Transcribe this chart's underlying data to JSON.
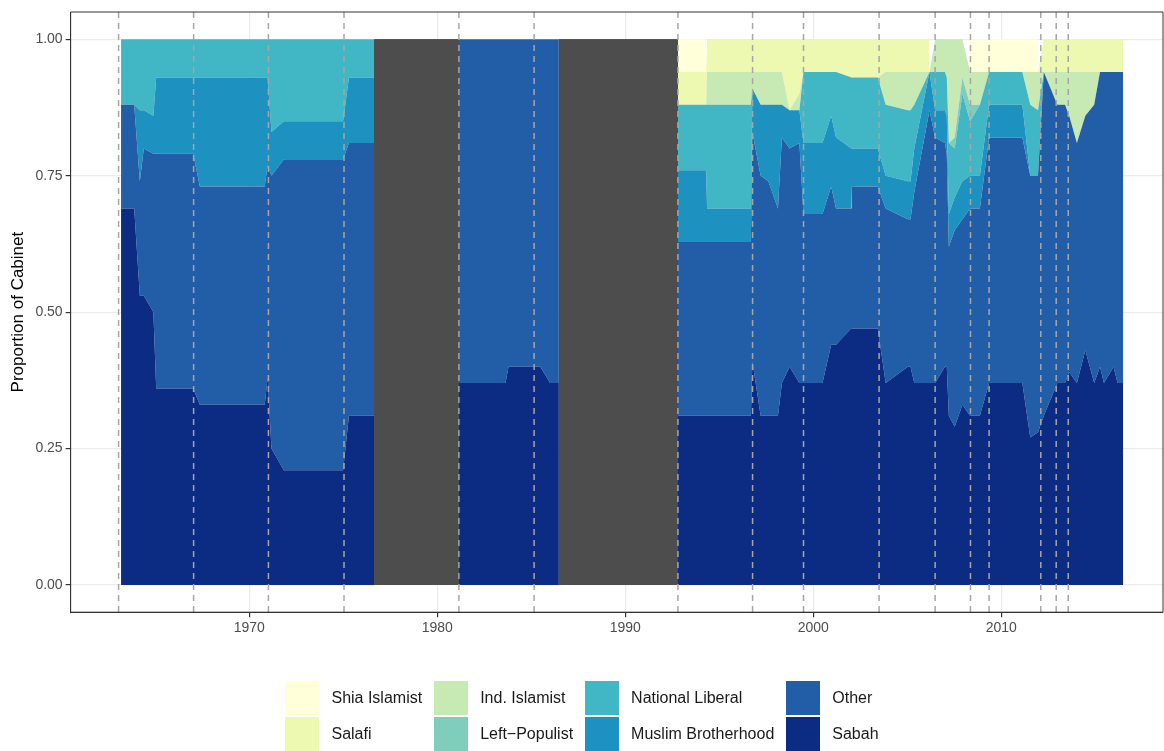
{
  "chart_data": {
    "type": "area",
    "stacked": true,
    "ylabel": "Proportion of Cabinet",
    "x": [
      1963.18,
      1963.88,
      1964.18,
      1964.39,
      1964.9,
      1965.05,
      1967.02,
      1967.37,
      1970.82,
      1970.98,
      1971.18,
      1971.84,
      1974.99,
      1975.3,
      1976.64,
      1979,
      1981.15,
      1983.63,
      1983.79,
      1985.48,
      1986.0,
      1986.47,
      1989.5,
      1992.8,
      1994.3,
      1994.35,
      1996.68,
      1996.76,
      1997.2,
      1997.61,
      1998.12,
      1998.33,
      1998.74,
      1999.26,
      1999.48,
      2000.49,
      2000.95,
      2001.21,
      2002.03,
      2002.05,
      2003.43,
      2003.85,
      2005.03,
      2005.17,
      2005.37,
      2006.18,
      2006.48,
      2007.0,
      2007.1,
      2007.21,
      2007.52,
      2007.93,
      2008.34,
      2008.86,
      2009.35,
      2011.12,
      2011.54,
      2011.95,
      2012.26,
      2012.98,
      2013.39,
      2013.61,
      2014.02,
      2014.47,
      2014.94,
      2015.25,
      2015.46,
      2015.97,
      2016.18,
      2016.48
    ],
    "series": [
      {
        "name": "Sabah",
        "color": "#0c2c84",
        "values": [
          0.69,
          0.69,
          0.53,
          0.53,
          0.5,
          0.36,
          0.36,
          0.33,
          0.33,
          0.38,
          0.25,
          0.21,
          0.21,
          0.31,
          0.31,
          null,
          0.37,
          0.37,
          0.4,
          0.4,
          0.37,
          0.37,
          null,
          0.31,
          0.31,
          0.31,
          0.31,
          0.41,
          0.31,
          0.31,
          0.31,
          0.37,
          0.4,
          0.37,
          0.37,
          0.37,
          0.44,
          0.44,
          0.47,
          0.47,
          0.47,
          0.37,
          0.4,
          0.4,
          0.37,
          0.37,
          0.37,
          0.4,
          0.4,
          0.31,
          0.29,
          0.33,
          0.31,
          0.31,
          0.37,
          0.37,
          0.27,
          0.28,
          0.31,
          0.37,
          0.37,
          0.39,
          0.37,
          0.43,
          0.37,
          0.4,
          0.37,
          0.4,
          0.37,
          0.37
        ]
      },
      {
        "name": "Other",
        "color": "#225ea8",
        "values": [
          0.19,
          0.19,
          0.21,
          0.27,
          0.29,
          0.43,
          0.43,
          0.4,
          0.4,
          0.39,
          0.5,
          0.57,
          0.57,
          0.5,
          0.5,
          null,
          0.63,
          0.63,
          0.6,
          0.6,
          0.63,
          0.63,
          null,
          0.32,
          0.32,
          0.32,
          0.32,
          0.42,
          0.44,
          0.43,
          0.38,
          0.45,
          0.4,
          0.44,
          0.31,
          0.31,
          0.29,
          0.25,
          0.22,
          0.26,
          0.26,
          0.32,
          0.27,
          0.27,
          0.35,
          0.5,
          0.45,
          0.41,
          0.39,
          0.31,
          0.36,
          0.34,
          0.38,
          0.38,
          0.45,
          0.45,
          0.48,
          0.47,
          0.63,
          0.51,
          0.51,
          0.47,
          0.44,
          0.43,
          0.51,
          0.54,
          0.57,
          0.54,
          0.57,
          0.57
        ]
      },
      {
        "name": "Muslim Brotherhood",
        "color": "#1d91c0",
        "values": [
          0,
          0,
          0.13,
          0.07,
          0.07,
          0.14,
          0.14,
          0.2,
          0.2,
          0.16,
          0.08,
          0.07,
          0.07,
          0.12,
          0.12,
          null,
          null,
          null,
          null,
          null,
          null,
          null,
          null,
          0.13,
          0.13,
          0.06,
          0.06,
          0.08,
          0.13,
          0.14,
          0.19,
          0.06,
          0.07,
          0.06,
          0.13,
          0.13,
          0.13,
          0.13,
          0.11,
          0.07,
          0.07,
          0.06,
          0.07,
          0.07,
          0.08,
          0.07,
          0.05,
          0.06,
          0.07,
          0.06,
          0.06,
          0.07,
          0.06,
          0.06,
          0.06,
          0.06,
          0,
          0,
          0,
          0,
          0,
          0,
          0,
          0,
          0,
          0,
          0,
          0,
          0,
          0
        ]
      },
      {
        "name": "National Liberal",
        "color": "#41b6c4",
        "values": [
          0.12,
          0.12,
          0.13,
          0.13,
          0.14,
          0.07,
          0.07,
          0.07,
          0.07,
          0.07,
          0.17,
          0.15,
          0.15,
          0.07,
          0.07,
          null,
          null,
          null,
          null,
          null,
          null,
          null,
          null,
          0.12,
          0.12,
          0.19,
          0.19,
          0,
          0,
          0,
          0,
          0,
          0,
          0,
          0.13,
          0.13,
          0.08,
          0.12,
          0.13,
          0.13,
          0.13,
          0.13,
          0.13,
          0.13,
          0.08,
          0,
          0.07,
          0.07,
          0.07,
          0.13,
          0.09,
          0.16,
          0.1,
          0.13,
          0.06,
          0.06,
          0.13,
          0.12,
          0,
          0,
          0,
          0,
          0,
          0,
          0,
          0,
          0,
          0,
          0,
          0
        ]
      },
      {
        "name": "Left−Populist",
        "color": "#7fcdbb",
        "values": [
          null,
          null,
          null,
          null,
          null,
          null,
          null,
          null,
          null,
          null,
          null,
          null,
          null,
          null,
          null,
          null,
          null,
          null,
          null,
          null,
          null,
          null,
          null,
          0,
          0,
          0,
          0,
          0,
          0,
          0,
          0,
          0,
          0,
          0,
          0,
          0,
          0,
          0,
          0,
          0,
          0,
          0,
          0,
          0,
          0,
          0,
          0,
          0,
          0,
          0,
          0.02,
          0.03,
          0.03,
          0,
          0,
          0,
          0,
          0,
          0,
          0,
          0,
          0,
          0,
          0,
          0,
          0,
          0,
          0,
          0,
          0
        ]
      },
      {
        "name": "Ind. Islamist",
        "color": "#c7e9b4",
        "values": [
          null,
          null,
          null,
          null,
          null,
          null,
          null,
          null,
          null,
          null,
          null,
          null,
          null,
          null,
          null,
          null,
          null,
          null,
          null,
          null,
          null,
          null,
          null,
          0,
          0,
          0.06,
          0.06,
          0.03,
          0.06,
          0.06,
          0.06,
          0.06,
          0,
          0.03,
          0,
          0,
          0,
          0,
          0,
          0,
          0,
          0.06,
          0.07,
          0.07,
          0.06,
          0,
          0.06,
          0.06,
          0.07,
          0.19,
          0.18,
          0.07,
          0.06,
          0.06,
          0,
          0,
          0.06,
          0.07,
          0,
          0.06,
          0.06,
          0.08,
          0.13,
          0.08,
          0.06,
          0,
          0,
          0,
          0,
          0
        ]
      },
      {
        "name": "Salafi",
        "color": "#edf8b1",
        "values": [
          null,
          null,
          null,
          null,
          null,
          null,
          null,
          null,
          null,
          null,
          null,
          null,
          null,
          null,
          null,
          null,
          null,
          null,
          null,
          null,
          null,
          null,
          null,
          0.06,
          0.06,
          0.06,
          0.06,
          0.06,
          0.06,
          0.06,
          0.06,
          0.06,
          0.13,
          0.1,
          0.06,
          0.06,
          0.06,
          0.06,
          0.07,
          0.07,
          0.07,
          0.06,
          0.06,
          0.06,
          0.06,
          0.06,
          null,
          null,
          null,
          null,
          null,
          null,
          0,
          0,
          0,
          0,
          0,
          0,
          0.06,
          0.06,
          0.06,
          0.06,
          0.06,
          0.06,
          0.06,
          0.06,
          0.06,
          0.06,
          0.06,
          0.06
        ]
      },
      {
        "name": "Shia Islamist",
        "color": "#ffffd9",
        "values": [
          null,
          null,
          null,
          null,
          null,
          null,
          null,
          null,
          null,
          null,
          null,
          null,
          null,
          null,
          null,
          null,
          null,
          null,
          null,
          null,
          null,
          null,
          null,
          0.06,
          0.06,
          null,
          null,
          null,
          null,
          null,
          null,
          null,
          null,
          null,
          null,
          null,
          null,
          null,
          null,
          null,
          null,
          null,
          null,
          null,
          null,
          null,
          null,
          null,
          null,
          null,
          null,
          null,
          0.06,
          0.06,
          0.06,
          0.06,
          0.06,
          0.06,
          null,
          null,
          null,
          null,
          null,
          null,
          null,
          null,
          null,
          null,
          null,
          null
        ]
      }
    ],
    "xlim": [
      1960.5,
      2018.6
    ],
    "xticks": [
      1970,
      1980,
      1990,
      2000,
      2010
    ],
    "ylim": [
      -0.05,
      1.05
    ],
    "yticks": [
      {
        "value": 0,
        "label": "0.00"
      },
      {
        "value": 0.25,
        "label": "0.25"
      },
      {
        "value": 0.5,
        "label": "0.50"
      },
      {
        "value": 0.75,
        "label": "0.75"
      },
      {
        "value": 1,
        "label": "1.00"
      }
    ],
    "grid": true,
    "legend": "bottom",
    "bands": [
      {
        "axis": "x",
        "from": 1976.64,
        "to": 1981.15,
        "color": "#4d4d4d"
      },
      {
        "axis": "x",
        "from": 1986.47,
        "to": 1992.8,
        "color": "#4d4d4d"
      }
    ],
    "ref_lines": [
      {
        "axis": "x",
        "value": 1963.05,
        "color": "#a6a6a6",
        "line_style": "dashed"
      },
      {
        "axis": "x",
        "value": 1967.04,
        "color": "#a6a6a6",
        "line_style": "dashed"
      },
      {
        "axis": "x",
        "value": 1971.02,
        "color": "#a6a6a6",
        "line_style": "dashed"
      },
      {
        "axis": "x",
        "value": 1975.04,
        "color": "#a6a6a6",
        "line_style": "dashed"
      },
      {
        "axis": "x",
        "value": 1981.15,
        "color": "#a6a6a6",
        "line_style": "dashed"
      },
      {
        "axis": "x",
        "value": 1985.15,
        "color": "#a6a6a6",
        "line_style": "dashed"
      },
      {
        "axis": "x",
        "value": 1992.8,
        "color": "#a6a6a6",
        "line_style": "dashed"
      },
      {
        "axis": "x",
        "value": 1996.77,
        "color": "#a6a6a6",
        "line_style": "dashed"
      },
      {
        "axis": "x",
        "value": 1999.48,
        "color": "#a6a6a6",
        "line_style": "dashed"
      },
      {
        "axis": "x",
        "value": 2003.5,
        "color": "#a6a6a6",
        "line_style": "dashed"
      },
      {
        "axis": "x",
        "value": 2006.48,
        "color": "#a6a6a6",
        "line_style": "dashed"
      },
      {
        "axis": "x",
        "value": 2008.36,
        "color": "#a6a6a6",
        "line_style": "dashed"
      },
      {
        "axis": "x",
        "value": 2009.35,
        "color": "#a6a6a6",
        "line_style": "dashed"
      },
      {
        "axis": "x",
        "value": 2012.1,
        "color": "#a6a6a6",
        "line_style": "dashed"
      },
      {
        "axis": "x",
        "value": 2012.92,
        "color": "#a6a6a6",
        "line_style": "dashed"
      },
      {
        "axis": "x",
        "value": 2013.56,
        "color": "#a6a6a6",
        "line_style": "dashed"
      }
    ]
  }
}
